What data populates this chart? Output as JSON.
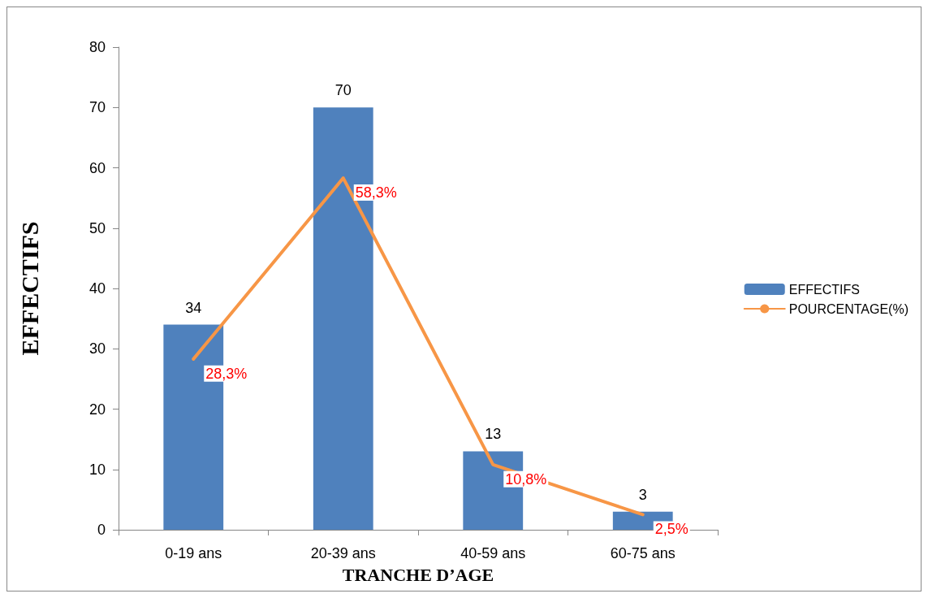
{
  "chart_data": {
    "type": "bar",
    "categories": [
      "0-19 ans",
      "20-39 ans",
      "40-59 ans",
      "60-75 ans"
    ],
    "series": [
      {
        "name": "EFFECTIFS",
        "color": "#4f81bd",
        "values": [
          34,
          70,
          13,
          3
        ],
        "value_labels": [
          "34",
          "70",
          "13",
          "3"
        ]
      },
      {
        "name": "POURCENTAGE(%)",
        "type": "line",
        "color": "#f79646",
        "values": [
          28.3,
          58.3,
          10.8,
          2.5
        ],
        "value_labels": [
          "28,3%",
          "58,3%",
          "10,8%",
          "2,5%"
        ]
      }
    ],
    "xlabel": "TRANCHE D’AGE",
    "ylabel": "EFFECTIFS",
    "ylim": [
      0,
      80
    ],
    "yticks": [
      0,
      10,
      20,
      30,
      40,
      50,
      60,
      70,
      80
    ],
    "grid": false,
    "legend": "right",
    "marker": "none"
  }
}
